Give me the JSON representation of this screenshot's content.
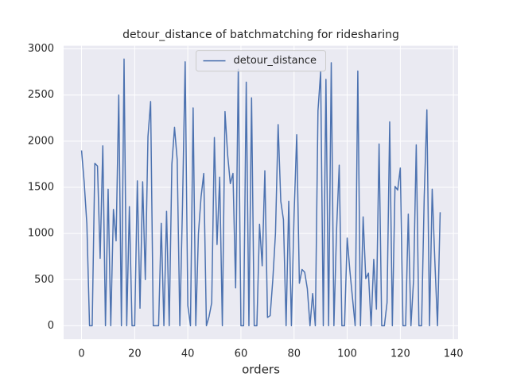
{
  "chart_data": {
    "type": "line",
    "title": "detour_distance of batchmatching for ridesharing",
    "x_label": "orders",
    "x": [
      0,
      1,
      2,
      3,
      4,
      5,
      6,
      7,
      8,
      9,
      10,
      11,
      12,
      13,
      14,
      15,
      16,
      17,
      18,
      19,
      20,
      21,
      22,
      23,
      24,
      25,
      26,
      27,
      28,
      29,
      30,
      31,
      32,
      33,
      34,
      35,
      36,
      37,
      38,
      39,
      40,
      41,
      42,
      43,
      44,
      45,
      46,
      47,
      48,
      49,
      50,
      51,
      52,
      53,
      54,
      55,
      56,
      57,
      58,
      59,
      60,
      61,
      62,
      63,
      64,
      65,
      66,
      67,
      68,
      69,
      70,
      71,
      72,
      73,
      74,
      75,
      76,
      77,
      78,
      79,
      80,
      81,
      82,
      83,
      84,
      85,
      86,
      87,
      88,
      89,
      90,
      91,
      92,
      93,
      94,
      95,
      96,
      97,
      98,
      99,
      100,
      101,
      102,
      103,
      104,
      105,
      106,
      107,
      108,
      109,
      110,
      111,
      112,
      113,
      114,
      115,
      116,
      117,
      118,
      119,
      120,
      121,
      122,
      123,
      124,
      125,
      126,
      127,
      128,
      129,
      130,
      131,
      132,
      133,
      134,
      135
    ],
    "series": [
      {
        "name": "detour_distance",
        "color": "#4c72b0",
        "values": [
          1900,
          1550,
          1100,
          0,
          0,
          1760,
          1730,
          730,
          1950,
          0,
          1480,
          0,
          1260,
          920,
          2500,
          0,
          2890,
          0,
          1290,
          0,
          0,
          1570,
          190,
          1560,
          500,
          2050,
          2430,
          0,
          0,
          0,
          1110,
          0,
          1240,
          0,
          1750,
          2150,
          1800,
          0,
          1300,
          2860,
          220,
          0,
          2360,
          0,
          1000,
          1400,
          1650,
          0,
          100,
          250,
          2040,
          880,
          1610,
          0,
          2320,
          1850,
          1540,
          1650,
          410,
          2780,
          0,
          0,
          2640,
          0,
          2470,
          0,
          0,
          1100,
          650,
          1680,
          90,
          110,
          500,
          1000,
          2180,
          1350,
          1150,
          0,
          1350,
          0,
          1200,
          2070,
          460,
          610,
          580,
          400,
          0,
          350,
          0,
          2330,
          2750,
          0,
          2670,
          0,
          2850,
          0,
          1040,
          1740,
          0,
          0,
          950,
          600,
          300,
          0,
          2760,
          0,
          1180,
          510,
          570,
          0,
          720,
          180,
          1970,
          0,
          0,
          250,
          2210,
          0,
          1510,
          1470,
          1710,
          0,
          0,
          1210,
          0,
          500,
          1960,
          0,
          0,
          1400,
          2340,
          0,
          1480,
          700,
          0,
          1230
        ]
      }
    ],
    "xlim": [
      -6.75,
      141.75
    ],
    "ylim": [
      -144.5,
      3034.5
    ],
    "xticks": [
      0,
      20,
      40,
      60,
      80,
      100,
      120,
      140
    ],
    "yticks": [
      0,
      500,
      1000,
      1500,
      2000,
      2500,
      3000
    ],
    "grid": true,
    "legend": "upper center",
    "background": "#eaeaf2"
  }
}
